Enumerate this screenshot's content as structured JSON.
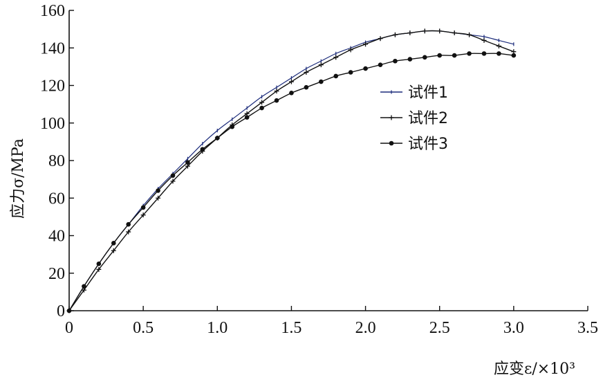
{
  "chart_data": {
    "type": "line",
    "title": "",
    "xlabel": "应变ε/×10³",
    "ylabel": "应力σ/MPa",
    "xlim": [
      0,
      3.5
    ],
    "ylim": [
      0,
      160
    ],
    "xticks": [
      "0",
      "0.5",
      "1.0",
      "1.5",
      "2.0",
      "2.5",
      "3.0",
      "3.5"
    ],
    "yticks": [
      "0",
      "20",
      "40",
      "60",
      "80",
      "100",
      "120",
      "140",
      "160"
    ],
    "grid": false,
    "legend_position": "right",
    "series": [
      {
        "name": "试件1",
        "marker": "small-tick",
        "color": "#1a2a7a",
        "x": [
          0,
          0.1,
          0.2,
          0.3,
          0.4,
          0.5,
          0.6,
          0.7,
          0.8,
          0.9,
          1.0,
          1.1,
          1.2,
          1.3,
          1.4,
          1.5,
          1.6,
          1.7,
          1.8,
          1.9,
          2.0,
          2.1,
          2.2,
          2.3,
          2.4,
          2.5,
          2.6,
          2.7,
          2.8,
          2.9,
          3.0
        ],
        "y": [
          0,
          13,
          25,
          36,
          46,
          56,
          65,
          73,
          81,
          89,
          96,
          102,
          108,
          114,
          119,
          124,
          129,
          133,
          137,
          140,
          143,
          145,
          147,
          148,
          149,
          149,
          148,
          147,
          146,
          144,
          142
        ]
      },
      {
        "name": "试件2",
        "marker": "cross",
        "color": "#111111",
        "x": [
          0,
          0.1,
          0.2,
          0.3,
          0.4,
          0.5,
          0.6,
          0.7,
          0.8,
          0.9,
          1.0,
          1.1,
          1.2,
          1.3,
          1.4,
          1.5,
          1.6,
          1.7,
          1.8,
          1.9,
          2.0,
          2.1,
          2.2,
          2.3,
          2.4,
          2.5,
          2.6,
          2.7,
          2.8,
          2.9,
          3.0
        ],
        "y": [
          0,
          11,
          22,
          32,
          42,
          51,
          60,
          69,
          77,
          85,
          92,
          99,
          105,
          111,
          117,
          122,
          127,
          131,
          135,
          139,
          142,
          145,
          147,
          148,
          149,
          149,
          148,
          147,
          144,
          141,
          138
        ]
      },
      {
        "name": "试件3",
        "marker": "dot",
        "color": "#111111",
        "x": [
          0,
          0.1,
          0.2,
          0.3,
          0.4,
          0.5,
          0.6,
          0.7,
          0.8,
          0.9,
          1.0,
          1.1,
          1.2,
          1.3,
          1.4,
          1.5,
          1.6,
          1.7,
          1.8,
          1.9,
          2.0,
          2.1,
          2.2,
          2.3,
          2.4,
          2.5,
          2.6,
          2.7,
          2.8,
          2.9,
          3.0
        ],
        "y": [
          0,
          13,
          25,
          36,
          46,
          55,
          64,
          72,
          79,
          86,
          92,
          98,
          103,
          108,
          112,
          116,
          119,
          122,
          125,
          127,
          129,
          131,
          133,
          134,
          135,
          136,
          136,
          137,
          137,
          137,
          136
        ]
      }
    ]
  }
}
